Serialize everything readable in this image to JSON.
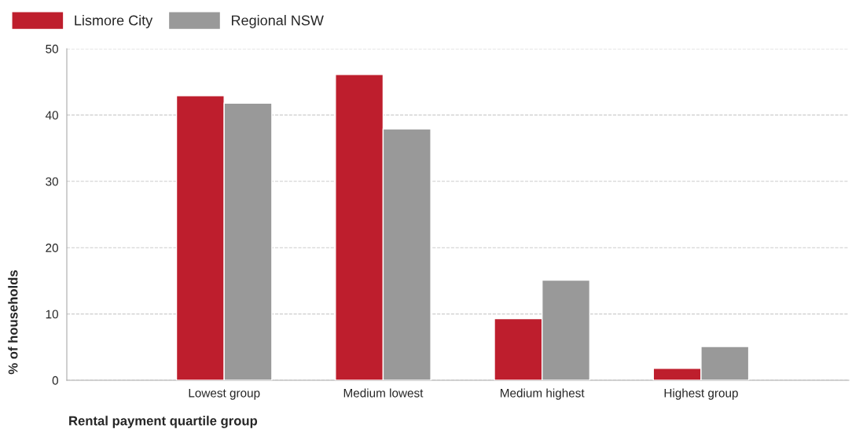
{
  "chart_data": {
    "type": "bar",
    "xlabel": "Rental payment quartile group",
    "ylabel": "% of households",
    "categories": [
      "Lowest group",
      "Medium lowest",
      "Medium highest",
      "Highest group"
    ],
    "series": [
      {
        "name": "Lismore City",
        "color": "#be1e2d",
        "values": [
          42.9,
          46.1,
          9.3,
          1.8
        ]
      },
      {
        "name": "Regional NSW",
        "color": "#999999",
        "values": [
          41.8,
          37.9,
          15.1,
          5.1
        ]
      }
    ],
    "ylim": [
      0,
      50
    ],
    "yticks": [
      0,
      10,
      20,
      30,
      40,
      50
    ],
    "grid": "y",
    "legend": "top left"
  }
}
